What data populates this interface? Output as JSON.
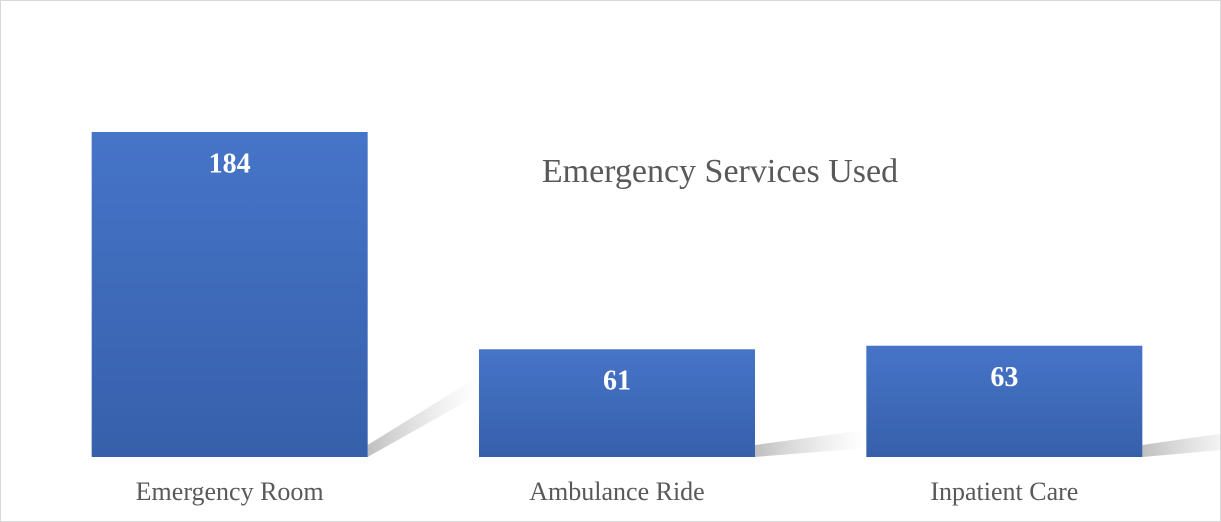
{
  "chart_data": {
    "type": "bar",
    "title": "Emergency Services Used",
    "categories": [
      "Emergency Room",
      "Ambulance Ride",
      "Inpatient Care"
    ],
    "values": [
      184,
      61,
      63
    ],
    "color": "#4472c4"
  }
}
